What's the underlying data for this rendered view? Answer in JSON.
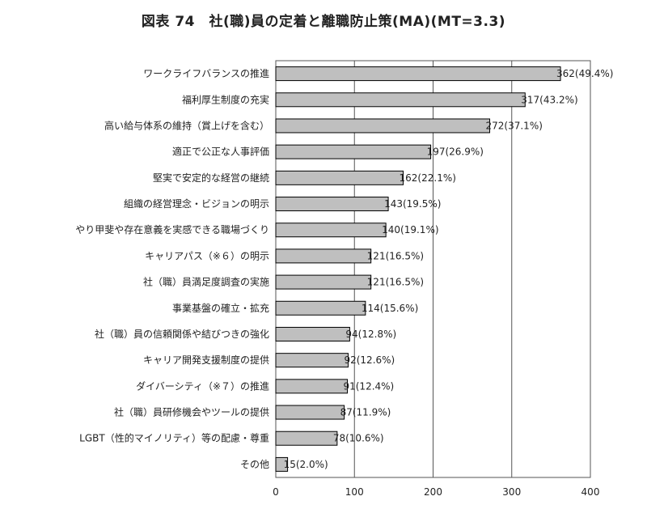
{
  "chart_data": {
    "type": "bar",
    "orientation": "horizontal",
    "title": "図表 74　社(職)員の定着と離職防止策(MA)(MT=3.3)",
    "categories": [
      "ワークライフバランスの推進",
      "福利厚生制度の充実",
      "高い給与体系の維持（賞上げを含む）",
      "適正で公正な人事評価",
      "堅実で安定的な経営の継続",
      "組織の経営理念・ビジョンの明示",
      "やり甲斐や存在意義を実感できる職場づくり",
      "キャリアパス（※６）の明示",
      "社（職）員満足度調査の実施",
      "事業基盤の確立・拡充",
      "社（職）員の信頼関係や結びつきの強化",
      "キャリア開発支援制度の提供",
      "ダイバーシティ（※７）の推進",
      "社（職）員研修機会やツールの提供",
      "LGBT（性的マイノリティ）等の配慮・尊重",
      "その他"
    ],
    "values": [
      362,
      317,
      272,
      197,
      162,
      143,
      140,
      121,
      121,
      114,
      94,
      92,
      91,
      87,
      78,
      15
    ],
    "value_labels": [
      "362(49.4%)",
      "317(43.2%)",
      "272(37.1%)",
      "197(26.9%)",
      "162(22.1%)",
      "143(19.5%)",
      "140(19.1%)",
      "121(16.5%)",
      "121(16.5%)",
      "114(15.6%)",
      "94(12.8%)",
      "92(12.6%)",
      "91(12.4%)",
      "87(11.9%)",
      "78(10.6%)",
      "15(2.0%)"
    ],
    "xlim": [
      0,
      400
    ],
    "xticks": [
      0,
      100,
      200,
      300,
      400
    ],
    "grid": true,
    "legend": "none",
    "xlabel": "",
    "ylabel": "",
    "colors": {
      "bar_fill": "#bfbfbf",
      "bar_stroke": "#000000",
      "grid": "#555555"
    }
  }
}
